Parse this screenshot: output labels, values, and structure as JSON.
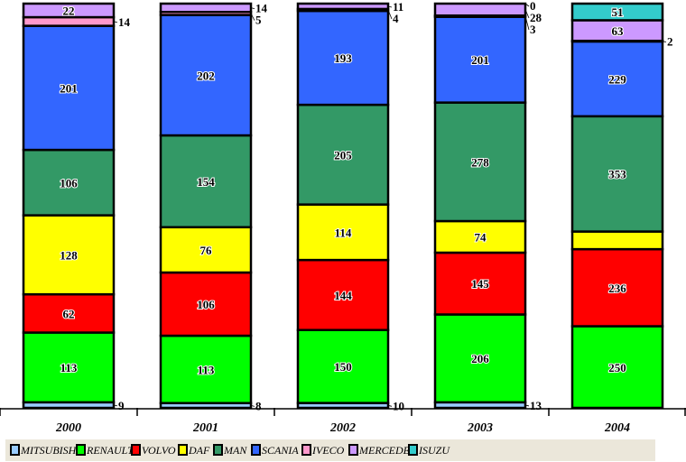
{
  "chart_data": {
    "type": "bar",
    "stacked": true,
    "normalized": true,
    "categories": [
      "2000",
      "2001",
      "2002",
      "2003",
      "2004"
    ],
    "series": [
      {
        "name": "MITSUBISHI",
        "color": "#99ccff",
        "values": [
          9,
          8,
          10,
          13,
          0
        ],
        "labels": [
          "9",
          "8",
          "10",
          "13",
          null
        ]
      },
      {
        "name": "RENAULT",
        "color": "#00ff00",
        "values": [
          113,
          113,
          150,
          206,
          250
        ],
        "labels": [
          "113",
          "113",
          "150",
          "206",
          "250"
        ]
      },
      {
        "name": "VOLVO",
        "color": "#ff0000",
        "values": [
          62,
          106,
          144,
          145,
          236
        ],
        "labels": [
          "62",
          "106",
          "144",
          "145",
          "236"
        ]
      },
      {
        "name": "DAF",
        "color": "#ffff00",
        "values": [
          128,
          76,
          114,
          74,
          54
        ],
        "labels": [
          "128",
          "76",
          "114",
          "74",
          null
        ]
      },
      {
        "name": "MAN",
        "color": "#339966",
        "values": [
          106,
          154,
          205,
          278,
          353
        ],
        "labels": [
          "106",
          "154",
          "205",
          "278",
          "353"
        ]
      },
      {
        "name": "SCANIA",
        "color": "#3366ff",
        "values": [
          201,
          202,
          193,
          201,
          229
        ],
        "labels": [
          "201",
          "202",
          "193",
          "201",
          "229"
        ]
      },
      {
        "name": "IVECO",
        "color": "#ff99cc",
        "values": [
          14,
          5,
          4,
          3,
          2
        ],
        "labels": [
          "14",
          "5",
          "4",
          "3",
          "2"
        ]
      },
      {
        "name": "MERCEDES",
        "color": "#cc99ff",
        "values": [
          22,
          14,
          11,
          28,
          63
        ],
        "labels": [
          "22",
          "14",
          "11",
          "28",
          "63"
        ]
      },
      {
        "name": "ISUZU",
        "color": "#33cccc",
        "values": [
          0,
          0,
          0,
          0,
          51
        ],
        "labels": [
          null,
          null,
          null,
          "0",
          "51"
        ]
      }
    ],
    "legend_position": "bottom",
    "grid": false,
    "xlabel": "",
    "ylabel": ""
  }
}
